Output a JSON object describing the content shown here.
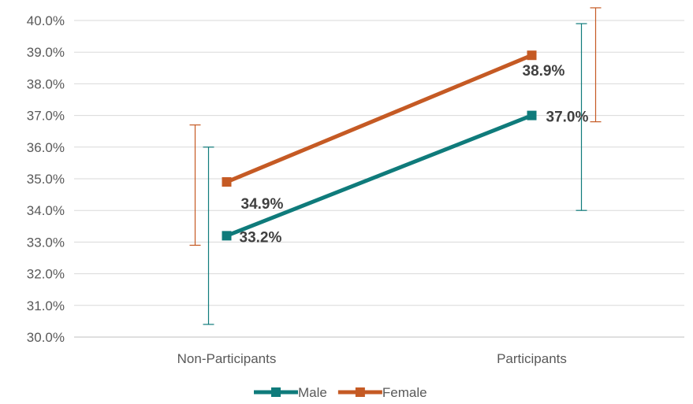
{
  "chart_data": {
    "type": "line",
    "title": "",
    "xlabel": "",
    "ylabel": "",
    "categories": [
      "Non-Participants",
      "Participants"
    ],
    "ylim": [
      30.0,
      40.0
    ],
    "y_tick_step": 1.0,
    "y_format": "percent_1dp",
    "grid": "horizontal",
    "legend_position": "bottom",
    "series": [
      {
        "name": "Male",
        "color": "#0f7b7b",
        "values": [
          33.2,
          37.0
        ],
        "error_low": [
          30.4,
          34.0
        ],
        "error_high": [
          36.0,
          39.9
        ],
        "labels": [
          "33.2%",
          "37.0%"
        ]
      },
      {
        "name": "Female",
        "color": "#c55a24",
        "values": [
          34.9,
          38.9
        ],
        "error_low": [
          32.9,
          36.8
        ],
        "error_high": [
          36.7,
          40.4
        ],
        "labels": [
          "34.9%",
          "38.9%"
        ]
      }
    ],
    "y_ticks": [
      "30.0%",
      "31.0%",
      "32.0%",
      "33.0%",
      "34.0%",
      "35.0%",
      "36.0%",
      "37.0%",
      "38.0%",
      "39.0%",
      "40.0%"
    ]
  }
}
